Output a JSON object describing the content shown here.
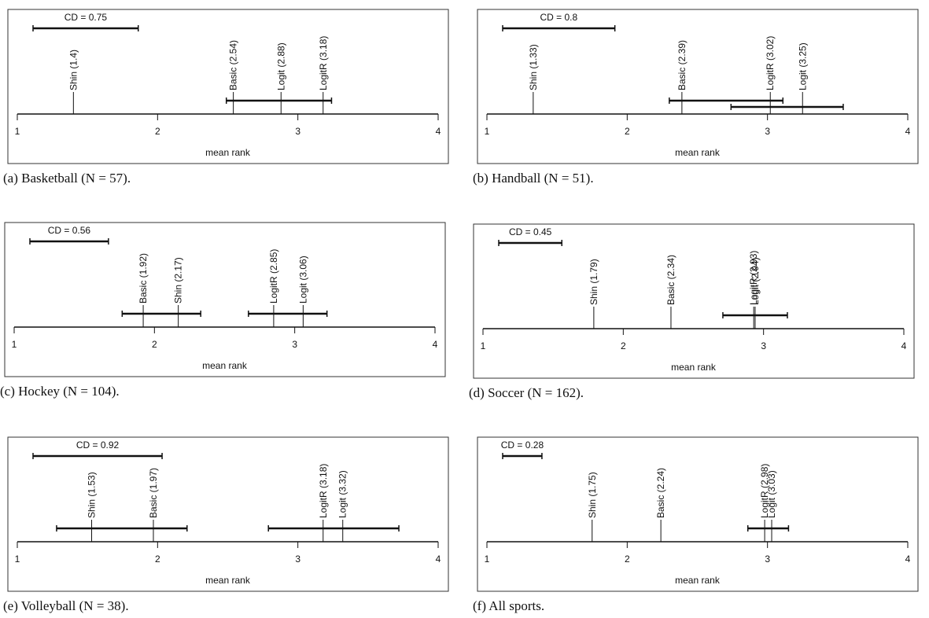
{
  "chart_data": [
    {
      "type": "cd",
      "caption": "(a) Basketball (N = 57).",
      "cd": 0.75,
      "cd_label": "CD = 0.75",
      "values": [
        1.4,
        2.54,
        2.88,
        3.18
      ],
      "value_labels": [
        "Shin (1.4)",
        "Basic (2.54)",
        "Logit (2.88)",
        "LogitR (3.18)"
      ],
      "cliques": [
        [
          2.49,
          3.24
        ]
      ],
      "xlim": [
        1,
        4
      ],
      "xticks": [
        1,
        2,
        3,
        4
      ],
      "xlabel": "mean rank"
    },
    {
      "type": "cd",
      "caption": "(b) Handball (N = 51).",
      "cd": 0.8,
      "cd_label": "CD = 0.8",
      "values": [
        1.33,
        2.39,
        3.02,
        3.25
      ],
      "value_labels": [
        "Shin (1.33)",
        "Basic (2.39)",
        "LogitR (3.02)",
        "Logit (3.25)"
      ],
      "cliques": [
        [
          2.3,
          3.11
        ],
        [
          2.74,
          3.54
        ]
      ],
      "xlim": [
        1,
        4
      ],
      "xticks": [
        1,
        2,
        3,
        4
      ],
      "xlabel": "mean rank"
    },
    {
      "type": "cd",
      "caption": "(c) Hockey (N = 104).",
      "cd": 0.56,
      "cd_label": "CD = 0.56",
      "values": [
        1.92,
        2.17,
        2.85,
        3.06
      ],
      "value_labels": [
        "Basic (1.92)",
        "Shin (2.17)",
        "LogitR (2.85)",
        "Logit (3.06)"
      ],
      "cliques": [
        [
          1.77,
          2.33
        ],
        [
          2.67,
          3.23
        ]
      ],
      "xlim": [
        1,
        4
      ],
      "xticks": [
        1,
        2,
        3,
        4
      ],
      "xlabel": "mean rank"
    },
    {
      "type": "cd",
      "caption": "(d) Soccer (N = 162).",
      "cd": 0.45,
      "cd_label": "CD = 0.45",
      "values": [
        1.79,
        2.34,
        2.93,
        2.94
      ],
      "value_labels": [
        "Shin (1.79)",
        "Basic (2.34)",
        "LogitR (2.93)",
        "Logit (2.94)"
      ],
      "cliques": [
        [
          2.71,
          3.17
        ]
      ],
      "xlim": [
        1,
        4
      ],
      "xticks": [
        1,
        2,
        3,
        4
      ],
      "xlabel": "mean rank"
    },
    {
      "type": "cd",
      "caption": "(e) Volleyball (N = 38).",
      "cd": 0.92,
      "cd_label": "CD = 0.92",
      "values": [
        1.53,
        1.97,
        3.18,
        3.32
      ],
      "value_labels": [
        "Shin (1.53)",
        "Basic (1.97)",
        "LogitR (3.18)",
        "Logit (3.32)"
      ],
      "cliques": [
        [
          1.28,
          2.21
        ],
        [
          2.79,
          3.72
        ]
      ],
      "xlim": [
        1,
        4
      ],
      "xticks": [
        1,
        2,
        3,
        4
      ],
      "xlabel": "mean rank"
    },
    {
      "type": "cd",
      "caption": "(f) All sports.",
      "cd": 0.28,
      "cd_label": "CD = 0.28",
      "values": [
        1.75,
        2.24,
        2.98,
        3.03
      ],
      "value_labels": [
        "Shin (1.75)",
        "Basic (2.24)",
        "LogitR (2.98)",
        "Logit (3.03)"
      ],
      "cliques": [
        [
          2.86,
          3.15
        ]
      ],
      "xlim": [
        1,
        4
      ],
      "xticks": [
        1,
        2,
        3,
        4
      ],
      "xlabel": "mean rank"
    }
  ]
}
